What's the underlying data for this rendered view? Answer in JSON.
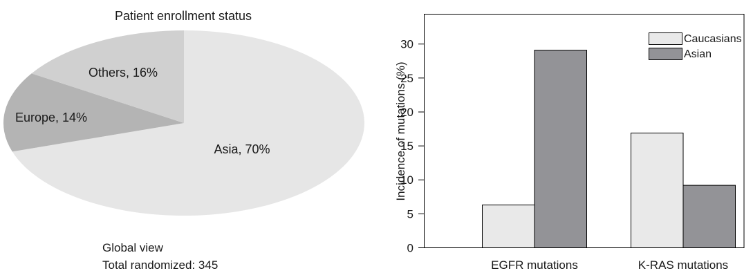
{
  "chart_data": [
    {
      "type": "pie",
      "title": "Patient enrollment status",
      "slices": [
        {
          "label": "Asia, 70%",
          "value": 70,
          "color": "#e6e6e6"
        },
        {
          "label": "Europe, 14%",
          "value": 14,
          "color": "#b4b4b4"
        },
        {
          "label": "Others, 16%",
          "value": 16,
          "color": "#d0d0d0"
        }
      ],
      "annotations": [
        "Global view",
        "Total randomized: 345"
      ]
    },
    {
      "type": "bar",
      "categories": [
        "EGFR mutations",
        "K-RAS mutations"
      ],
      "series": [
        {
          "name": "Caucasians",
          "values": [
            6.3,
            16.9
          ],
          "color": "#e9e9e9"
        },
        {
          "name": "Asian",
          "values": [
            29.1,
            9.2
          ],
          "color": "#939397"
        }
      ],
      "ylabel": "Incidence of mutations (%)",
      "ylim": [
        0,
        34.4
      ],
      "yticks": [
        0,
        5,
        10,
        15,
        20,
        25,
        30
      ],
      "legend": "top-right",
      "grid": false
    }
  ]
}
